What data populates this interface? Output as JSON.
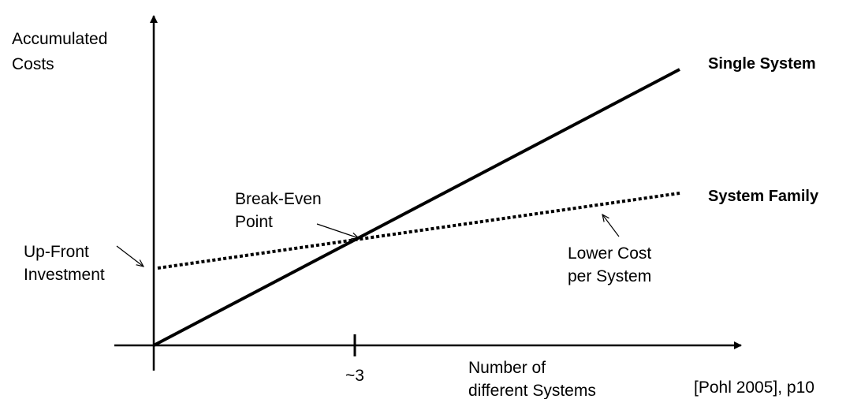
{
  "y_axis_label": [
    "Accumulated",
    "Costs"
  ],
  "x_axis_label": [
    "Number of",
    "different Systems"
  ],
  "x_tick_label": "~3",
  "lines": [
    {
      "label": "Single System"
    },
    {
      "label": "System Family"
    }
  ],
  "annotations": {
    "break_even": [
      "Break-Even",
      "Point"
    ],
    "up_front": [
      "Up-Front",
      "Investment"
    ],
    "lower_cost": [
      "Lower Cost",
      "per System"
    ]
  },
  "citation": "[Pohl 2005], p10"
}
